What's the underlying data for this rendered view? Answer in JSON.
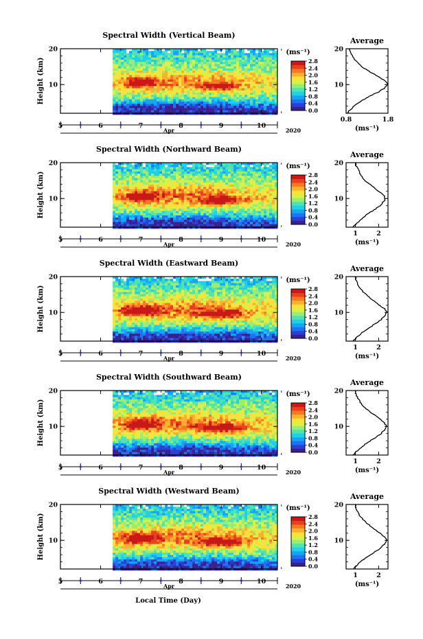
{
  "figure": {
    "xlabel": "Local Time (Day)",
    "ylabel": "Height (km)",
    "month": "Apr",
    "year": "2020",
    "unit": "(ms⁻¹)",
    "profile_title": "Average",
    "profile_unit": "(ms⁻¹)"
  },
  "colorbar": {
    "vmin": 0.0,
    "vmax": 2.8,
    "ticks": [
      "0.0",
      "0.4",
      "0.8",
      "1.2",
      "1.6",
      "2.0",
      "2.4",
      "2.8"
    ],
    "colors": [
      "#3b1f8f",
      "#2a3fd6",
      "#1e74f0",
      "#14a6f5",
      "#1fd0e6",
      "#4fe3b0",
      "#98ee72",
      "#d9f046",
      "#fde03a",
      "#fdb02e",
      "#f77a22",
      "#e8401c",
      "#c81818"
    ]
  },
  "chart_data": [
    {
      "type": "heatmap",
      "title": "Spectral Width (Vertical Beam)",
      "x_ticks": [
        "6",
        "7",
        "8",
        "9",
        "10"
      ],
      "xlim": [
        5,
        10.4
      ],
      "data_x_start": 6.3,
      "ylim": [
        2,
        20
      ],
      "y_ticks": [
        "10",
        "20"
      ],
      "pattern": [
        {
          "x": 7.0,
          "y": 10.5,
          "value": 2.8,
          "rx": 0.35,
          "ry": 1.2
        },
        {
          "x": 9.0,
          "y": 9.5,
          "value": 2.8,
          "rx": 0.45,
          "ry": 1.0
        },
        {
          "x": 8.0,
          "y": 11.0,
          "value": 1.8,
          "rx": 1.6,
          "ry": 3.0
        },
        {
          "x": 8.0,
          "y": 4.0,
          "value": 0.3,
          "rx": 3.0,
          "ry": 2.0
        }
      ],
      "profile": {
        "xlim": [
          0.8,
          1.8
        ],
        "x_ticks": [
          "0.8",
          "1.8"
        ],
        "heights": [
          2,
          3,
          4,
          5,
          6,
          7,
          8,
          9,
          10,
          11,
          12,
          13,
          14,
          15,
          16,
          17,
          18,
          19,
          20
        ],
        "values": [
          0.82,
          0.9,
          1.0,
          1.1,
          1.25,
          1.4,
          1.58,
          1.72,
          1.8,
          1.74,
          1.6,
          1.45,
          1.3,
          1.18,
          1.08,
          1.0,
          0.95,
          0.9,
          0.88
        ]
      }
    },
    {
      "type": "heatmap",
      "title": "Spectral Width (Northward Beam)",
      "x_ticks": [
        "6",
        "7",
        "8",
        "9",
        "10"
      ],
      "xlim": [
        5,
        10.4
      ],
      "data_x_start": 6.3,
      "ylim": [
        2,
        20
      ],
      "y_ticks": [
        "10",
        "20"
      ],
      "pattern": [
        {
          "x": 7.0,
          "y": 10.5,
          "value": 2.8,
          "rx": 0.4,
          "ry": 1.3
        },
        {
          "x": 9.0,
          "y": 9.5,
          "value": 2.8,
          "rx": 0.5,
          "ry": 1.1
        },
        {
          "x": 8.0,
          "y": 11.0,
          "value": 1.9,
          "rx": 1.7,
          "ry": 3.2
        },
        {
          "x": 8.0,
          "y": 4.0,
          "value": 0.4,
          "rx": 3.0,
          "ry": 2.0
        }
      ],
      "profile": {
        "xlim": [
          0.6,
          2.4
        ],
        "x_ticks": [
          "1",
          "2"
        ],
        "heights": [
          2,
          3,
          4,
          5,
          6,
          7,
          8,
          9,
          10,
          11,
          12,
          13,
          14,
          15,
          16,
          17,
          18,
          19,
          20
        ],
        "values": [
          0.9,
          1.05,
          1.2,
          1.4,
          1.6,
          1.85,
          2.05,
          2.2,
          2.3,
          2.2,
          2.0,
          1.8,
          1.6,
          1.42,
          1.3,
          1.2,
          1.12,
          1.05,
          1.0
        ]
      }
    },
    {
      "type": "heatmap",
      "title": "Spectral Width (Eastward Beam)",
      "x_ticks": [
        "6",
        "7",
        "8",
        "9",
        "10"
      ],
      "xlim": [
        5,
        10.4
      ],
      "data_x_start": 6.3,
      "ylim": [
        2,
        20
      ],
      "y_ticks": [
        "10",
        "20"
      ],
      "pattern": [
        {
          "x": 7.0,
          "y": 10.5,
          "value": 2.8,
          "rx": 0.45,
          "ry": 1.3
        },
        {
          "x": 9.0,
          "y": 9.5,
          "value": 2.8,
          "rx": 0.55,
          "ry": 1.1
        },
        {
          "x": 8.0,
          "y": 11.0,
          "value": 1.9,
          "rx": 1.7,
          "ry": 3.2
        },
        {
          "x": 8.0,
          "y": 4.0,
          "value": 0.4,
          "rx": 3.0,
          "ry": 2.0
        }
      ],
      "profile": {
        "xlim": [
          0.6,
          2.4
        ],
        "x_ticks": [
          "1",
          "2"
        ],
        "heights": [
          2,
          3,
          4,
          5,
          6,
          7,
          8,
          9,
          10,
          11,
          12,
          13,
          14,
          15,
          16,
          17,
          18,
          19,
          20
        ],
        "values": [
          0.9,
          1.05,
          1.22,
          1.42,
          1.65,
          1.9,
          2.1,
          2.25,
          2.35,
          2.25,
          2.05,
          1.85,
          1.65,
          1.45,
          1.3,
          1.18,
          1.1,
          1.03,
          1.0
        ]
      }
    },
    {
      "type": "heatmap",
      "title": "Spectral Width (Southward Beam)",
      "x_ticks": [
        "6",
        "7",
        "8",
        "9",
        "10"
      ],
      "xlim": [
        5,
        10.4
      ],
      "data_x_start": 6.3,
      "ylim": [
        2,
        20
      ],
      "y_ticks": [
        "10",
        "20"
      ],
      "pattern": [
        {
          "x": 7.0,
          "y": 10.5,
          "value": 2.8,
          "rx": 0.42,
          "ry": 1.3
        },
        {
          "x": 9.0,
          "y": 9.5,
          "value": 2.8,
          "rx": 0.55,
          "ry": 1.1
        },
        {
          "x": 8.0,
          "y": 11.0,
          "value": 1.9,
          "rx": 1.7,
          "ry": 3.2
        },
        {
          "x": 8.0,
          "y": 4.0,
          "value": 0.4,
          "rx": 3.0,
          "ry": 2.0
        }
      ],
      "profile": {
        "xlim": [
          0.6,
          2.4
        ],
        "x_ticks": [
          "1",
          "2"
        ],
        "heights": [
          2,
          3,
          4,
          5,
          6,
          7,
          8,
          9,
          10,
          11,
          12,
          13,
          14,
          15,
          16,
          17,
          18,
          19,
          20
        ],
        "values": [
          0.9,
          1.05,
          1.22,
          1.42,
          1.65,
          1.9,
          2.1,
          2.25,
          2.35,
          2.25,
          2.05,
          1.85,
          1.65,
          1.45,
          1.3,
          1.18,
          1.1,
          1.03,
          1.0
        ]
      }
    },
    {
      "type": "heatmap",
      "title": "Spectral Width (Westward Beam)",
      "x_ticks": [
        "6",
        "7",
        "8",
        "9",
        "10"
      ],
      "xlim": [
        5,
        10.4
      ],
      "data_x_start": 6.3,
      "ylim": [
        2,
        20
      ],
      "y_ticks": [
        "10",
        "20"
      ],
      "pattern": [
        {
          "x": 7.0,
          "y": 10.5,
          "value": 2.8,
          "rx": 0.45,
          "ry": 1.3
        },
        {
          "x": 9.0,
          "y": 9.5,
          "value": 2.8,
          "rx": 0.55,
          "ry": 1.1
        },
        {
          "x": 8.0,
          "y": 11.0,
          "value": 1.9,
          "rx": 1.7,
          "ry": 3.2
        },
        {
          "x": 8.0,
          "y": 4.0,
          "value": 0.4,
          "rx": 3.0,
          "ry": 2.0
        }
      ],
      "profile": {
        "xlim": [
          0.6,
          2.4
        ],
        "x_ticks": [
          "1",
          "2"
        ],
        "heights": [
          2,
          3,
          4,
          5,
          6,
          7,
          8,
          9,
          10,
          11,
          12,
          13,
          14,
          15,
          16,
          17,
          18,
          19,
          20
        ],
        "values": [
          0.9,
          1.05,
          1.22,
          1.42,
          1.65,
          1.9,
          2.1,
          2.25,
          2.35,
          2.25,
          2.05,
          1.85,
          1.65,
          1.45,
          1.3,
          1.18,
          1.1,
          1.03,
          1.0
        ]
      }
    }
  ]
}
